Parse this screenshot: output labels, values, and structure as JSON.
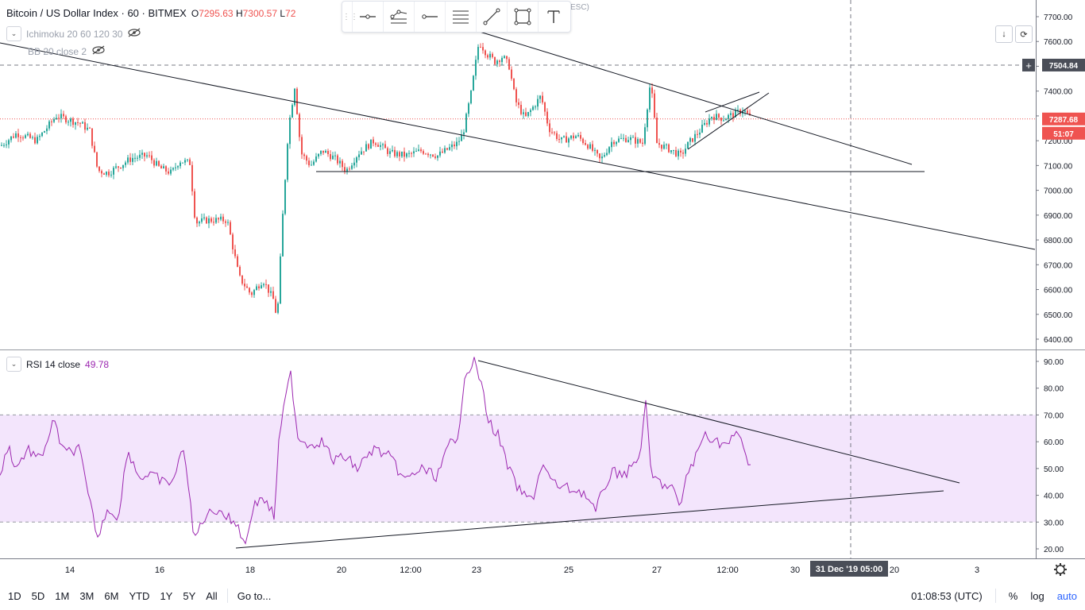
{
  "header": {
    "symbol": "Bitcoin / US Dollar Index · 60 · BITMEX",
    "open_label": "O",
    "open_value": "7295.63",
    "high_label": "H",
    "high_value": "7300.57",
    "low_label": "L",
    "low_value": "72",
    "hidden_hint": "ESC)"
  },
  "indicators": [
    {
      "name": "Ichimoku 20 60 120 30"
    },
    {
      "name": "BB 20 close 2"
    }
  ],
  "rsi_legend": {
    "name": "RSI 14 close",
    "value": "49.78"
  },
  "price_axis": {
    "ticks": [
      "7700.00",
      "7600.00",
      "7500.00",
      "7400.00",
      "7300.00",
      "7200.00",
      "7100.00",
      "7000.00",
      "6900.00",
      "6800.00",
      "6700.00",
      "6600.00",
      "6500.00",
      "6400.00"
    ],
    "crosshair_label": "7504.84",
    "last_price_label": "7287.68",
    "countdown_label": "51:07"
  },
  "rsi_axis": {
    "ticks": [
      "90.00",
      "80.00",
      "70.00",
      "60.00",
      "50.00",
      "40.00",
      "30.00",
      "20.00"
    ]
  },
  "time_axis": {
    "ticks": [
      "14",
      "16",
      "18",
      "20",
      "12:00",
      "23",
      "25",
      "27",
      "12:00",
      "30",
      "20",
      "3"
    ],
    "crosshair_label": "31 Dec '19   05:00"
  },
  "bottom_bar": {
    "ranges": [
      "1D",
      "5D",
      "1M",
      "3M",
      "6M",
      "YTD",
      "1Y",
      "5Y",
      "All"
    ],
    "goto_label": "Go to...",
    "clock": "01:08:53 (UTC)",
    "percent_label": "%",
    "log_label": "log",
    "auto_label": "auto"
  },
  "colors": {
    "up": "#26a69a",
    "down": "#ef5350",
    "rsi": "#9c27b0",
    "rsi_band": "#f3e5fc",
    "trendline": "#131722"
  },
  "chart_data": {
    "type": "candlestick",
    "price_range": [
      6400,
      7700
    ],
    "rsi_range": [
      20,
      90
    ],
    "rsi_band": [
      30,
      70
    ],
    "price_anchors": [
      [
        0,
        7180
      ],
      [
        20,
        7230
      ],
      [
        45,
        7200
      ],
      [
        70,
        7300
      ],
      [
        100,
        7270
      ],
      [
        112,
        7240
      ],
      [
        122,
        7080
      ],
      [
        135,
        7070
      ],
      [
        150,
        7100
      ],
      [
        165,
        7130
      ],
      [
        185,
        7140
      ],
      [
        200,
        7090
      ],
      [
        215,
        7070
      ],
      [
        225,
        7120
      ],
      [
        238,
        7110
      ],
      [
        245,
        6870
      ],
      [
        260,
        6880
      ],
      [
        285,
        6880
      ],
      [
        300,
        6650
      ],
      [
        315,
        6580
      ],
      [
        330,
        6640
      ],
      [
        343,
        6560
      ],
      [
        348,
        6480
      ],
      [
        355,
        6900
      ],
      [
        362,
        7250
      ],
      [
        370,
        7420
      ],
      [
        378,
        7150
      ],
      [
        390,
        7100
      ],
      [
        405,
        7160
      ],
      [
        420,
        7130
      ],
      [
        435,
        7080
      ],
      [
        450,
        7150
      ],
      [
        470,
        7200
      ],
      [
        490,
        7150
      ],
      [
        510,
        7140
      ],
      [
        530,
        7160
      ],
      [
        550,
        7140
      ],
      [
        575,
        7190
      ],
      [
        582,
        7230
      ],
      [
        592,
        7390
      ],
      [
        602,
        7600
      ],
      [
        612,
        7550
      ],
      [
        622,
        7520
      ],
      [
        632,
        7540
      ],
      [
        640,
        7500
      ],
      [
        648,
        7360
      ],
      [
        660,
        7290
      ],
      [
        680,
        7380
      ],
      [
        690,
        7250
      ],
      [
        705,
        7200
      ],
      [
        725,
        7220
      ],
      [
        740,
        7180
      ],
      [
        755,
        7120
      ],
      [
        770,
        7200
      ],
      [
        790,
        7210
      ],
      [
        808,
        7190
      ],
      [
        818,
        7440
      ],
      [
        826,
        7190
      ],
      [
        845,
        7160
      ],
      [
        856,
        7140
      ],
      [
        866,
        7190
      ],
      [
        880,
        7240
      ],
      [
        895,
        7300
      ],
      [
        910,
        7290
      ],
      [
        925,
        7310
      ],
      [
        935,
        7325
      ],
      [
        945,
        7287
      ]
    ],
    "rsi_anchors": [
      [
        0,
        600
      ],
      [
        10,
        560
      ],
      [
        20,
        590
      ],
      [
        35,
        565
      ],
      [
        50,
        580
      ],
      [
        68,
        530
      ],
      [
        80,
        570
      ],
      [
        100,
        565
      ],
      [
        110,
        620
      ],
      [
        124,
        680
      ],
      [
        134,
        640
      ],
      [
        150,
        650
      ],
      [
        160,
        565
      ],
      [
        175,
        600
      ],
      [
        195,
        600
      ],
      [
        210,
        610
      ],
      [
        220,
        600
      ],
      [
        232,
        560
      ],
      [
        244,
        680
      ],
      [
        258,
        650
      ],
      [
        275,
        640
      ],
      [
        290,
        655
      ],
      [
        300,
        660
      ],
      [
        308,
        690
      ],
      [
        318,
        640
      ],
      [
        330,
        625
      ],
      [
        345,
        650
      ],
      [
        352,
        545
      ],
      [
        360,
        500
      ],
      [
        366,
        470
      ],
      [
        375,
        550
      ],
      [
        390,
        560
      ],
      [
        405,
        555
      ],
      [
        420,
        580
      ],
      [
        435,
        575
      ],
      [
        450,
        590
      ],
      [
        470,
        565
      ],
      [
        490,
        575
      ],
      [
        510,
        605
      ],
      [
        530,
        590
      ],
      [
        550,
        600
      ],
      [
        568,
        555
      ],
      [
        575,
        565
      ],
      [
        585,
        470
      ],
      [
        598,
        455
      ],
      [
        605,
        480
      ],
      [
        615,
        530
      ],
      [
        628,
        550
      ],
      [
        640,
        590
      ],
      [
        655,
        620
      ],
      [
        670,
        630
      ],
      [
        682,
        585
      ],
      [
        698,
        610
      ],
      [
        715,
        615
      ],
      [
        735,
        620
      ],
      [
        750,
        645
      ],
      [
        758,
        620
      ],
      [
        770,
        595
      ],
      [
        790,
        595
      ],
      [
        805,
        575
      ],
      [
        813,
        510
      ],
      [
        820,
        600
      ],
      [
        835,
        610
      ],
      [
        848,
        615
      ],
      [
        856,
        645
      ],
      [
        863,
        600
      ],
      [
        872,
        585
      ],
      [
        888,
        545
      ],
      [
        900,
        555
      ],
      [
        915,
        560
      ],
      [
        930,
        545
      ],
      [
        945,
        590
      ]
    ]
  }
}
